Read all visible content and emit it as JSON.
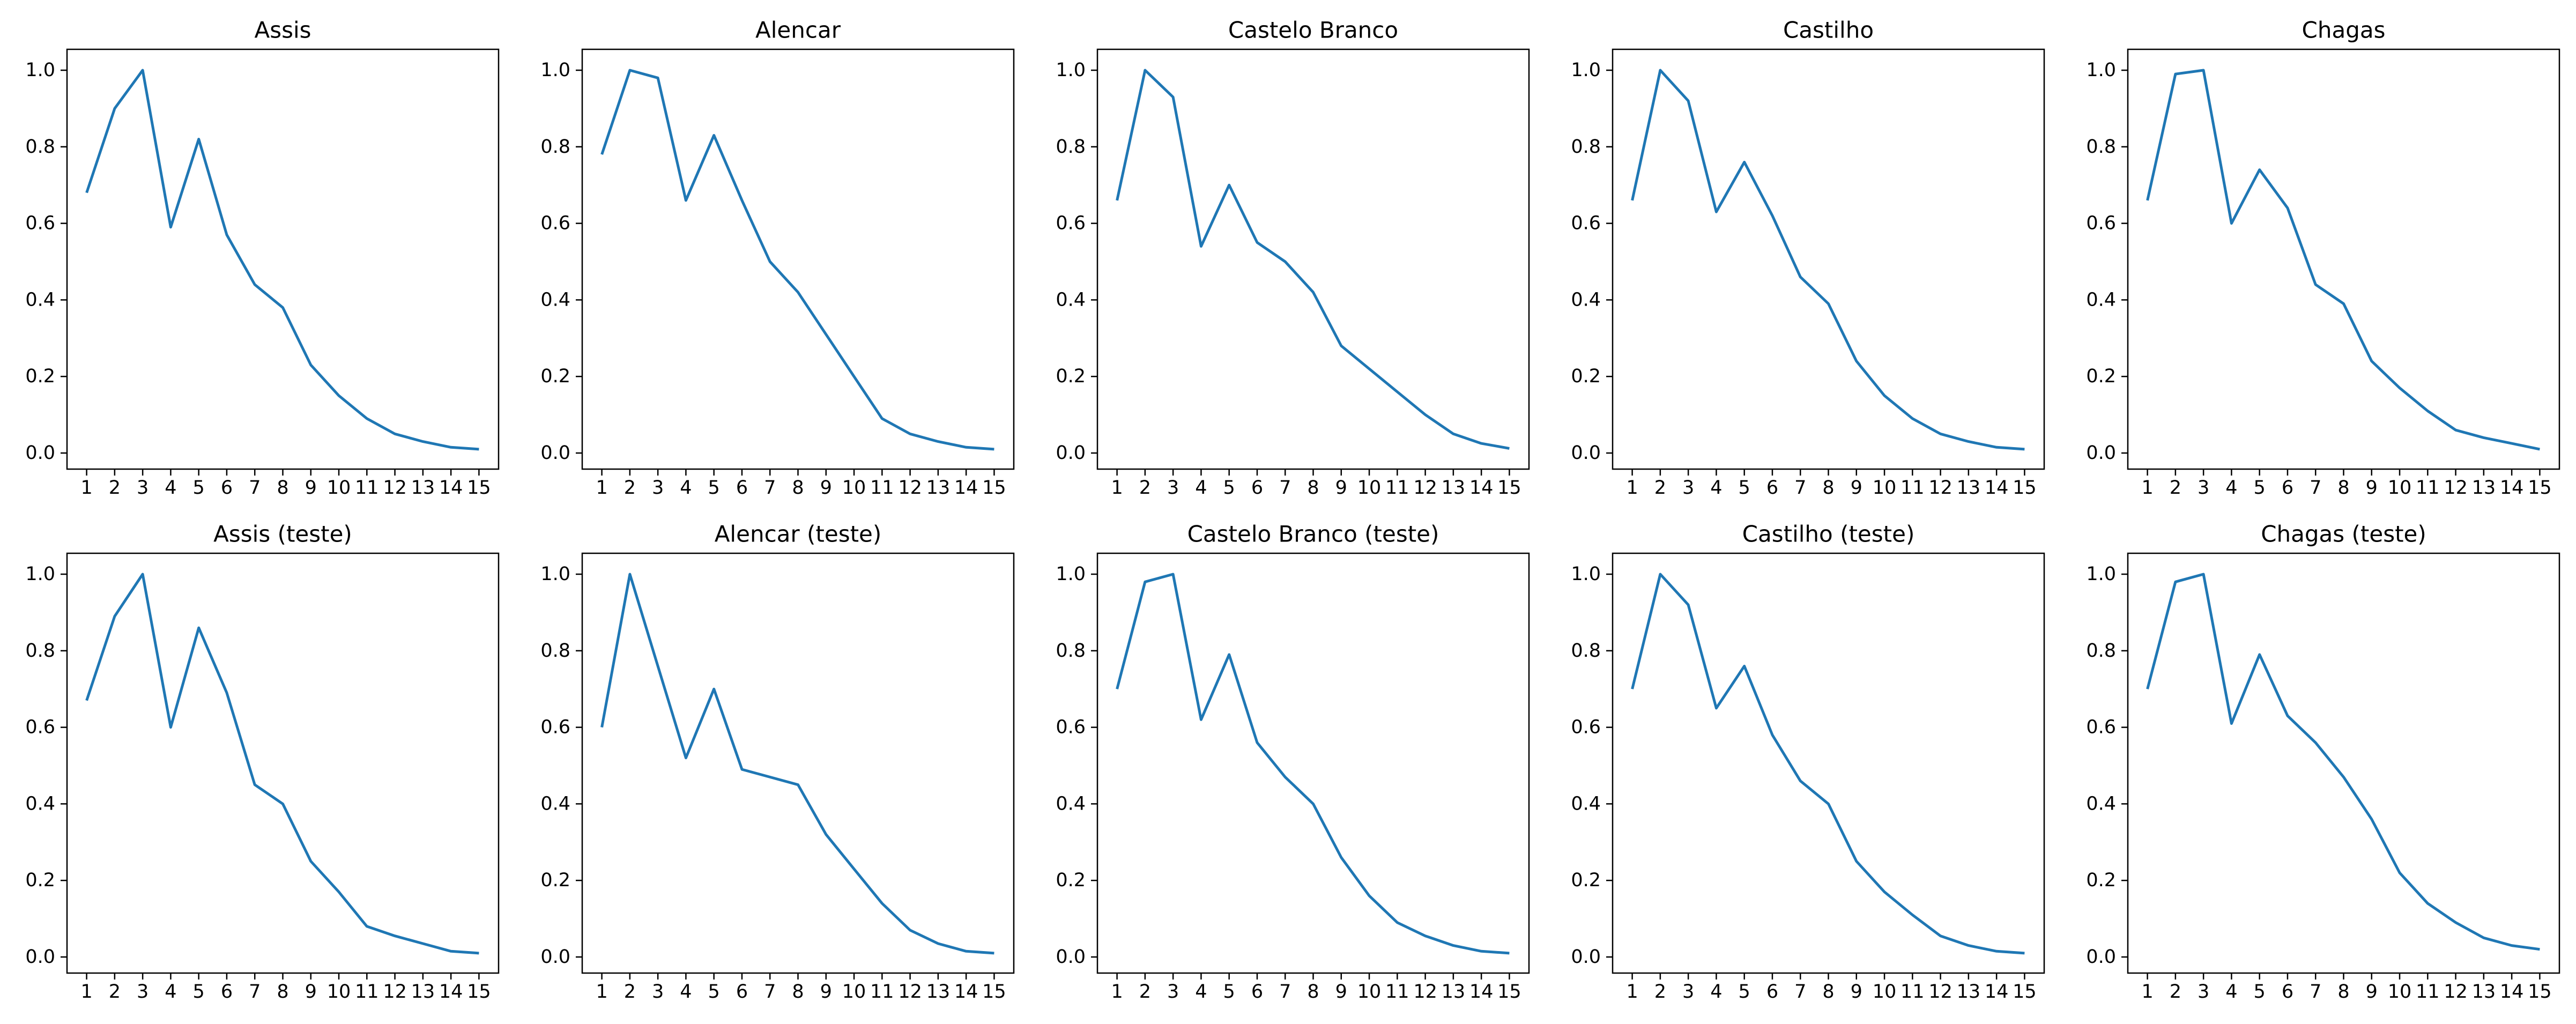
{
  "figure": {
    "background": "#ffffff",
    "line_color": "#1f77b4",
    "axis_color": "#000000",
    "text_color": "#000000",
    "rows": 2,
    "cols": 5,
    "grid": false,
    "legend": false
  },
  "axes": {
    "xlim": [
      0.3,
      15.7
    ],
    "ylim": [
      -0.045,
      1.05
    ],
    "xtick_labels": [
      "1",
      "2",
      "3",
      "4",
      "5",
      "6",
      "7",
      "8",
      "9",
      "10",
      "11",
      "12",
      "13",
      "14",
      "15"
    ],
    "ytick_values": [
      0.0,
      0.2,
      0.4,
      0.6,
      0.8,
      1.0
    ],
    "ytick_labels": [
      "0.0",
      "0.2",
      "0.4",
      "0.6",
      "0.8",
      "1.0"
    ],
    "xlabel": "",
    "ylabel": ""
  },
  "chart_data": [
    {
      "type": "line",
      "title": "Assis",
      "x": [
        1,
        2,
        3,
        4,
        5,
        6,
        7,
        8,
        9,
        10,
        11,
        12,
        13,
        14,
        15
      ],
      "y": [
        0.68,
        0.9,
        1.0,
        0.59,
        0.82,
        0.57,
        0.44,
        0.38,
        0.23,
        0.15,
        0.09,
        0.05,
        0.03,
        0.015,
        0.01
      ]
    },
    {
      "type": "line",
      "title": "Alencar",
      "x": [
        1,
        2,
        3,
        4,
        5,
        6,
        7,
        8,
        9,
        10,
        11,
        12,
        13,
        14,
        15
      ],
      "y": [
        0.78,
        1.0,
        0.98,
        0.66,
        0.83,
        0.66,
        0.5,
        0.42,
        0.31,
        0.2,
        0.09,
        0.05,
        0.03,
        0.015,
        0.01
      ]
    },
    {
      "type": "line",
      "title": "Castelo Branco",
      "x": [
        1,
        2,
        3,
        4,
        5,
        6,
        7,
        8,
        9,
        10,
        11,
        12,
        13,
        14,
        15
      ],
      "y": [
        0.66,
        1.0,
        0.93,
        0.54,
        0.7,
        0.55,
        0.5,
        0.42,
        0.28,
        0.22,
        0.16,
        0.1,
        0.05,
        0.025,
        0.012
      ]
    },
    {
      "type": "line",
      "title": "Castilho",
      "x": [
        1,
        2,
        3,
        4,
        5,
        6,
        7,
        8,
        9,
        10,
        11,
        12,
        13,
        14,
        15
      ],
      "y": [
        0.66,
        1.0,
        0.92,
        0.63,
        0.76,
        0.62,
        0.46,
        0.39,
        0.24,
        0.15,
        0.09,
        0.05,
        0.03,
        0.015,
        0.01
      ]
    },
    {
      "type": "line",
      "title": "Chagas",
      "x": [
        1,
        2,
        3,
        4,
        5,
        6,
        7,
        8,
        9,
        10,
        11,
        12,
        13,
        14,
        15
      ],
      "y": [
        0.66,
        0.99,
        1.0,
        0.6,
        0.74,
        0.64,
        0.44,
        0.39,
        0.24,
        0.17,
        0.11,
        0.06,
        0.04,
        0.025,
        0.01
      ]
    },
    {
      "type": "line",
      "title": "Assis (teste)",
      "x": [
        1,
        2,
        3,
        4,
        5,
        6,
        7,
        8,
        9,
        10,
        11,
        12,
        13,
        14,
        15
      ],
      "y": [
        0.67,
        0.89,
        1.0,
        0.6,
        0.86,
        0.69,
        0.45,
        0.4,
        0.25,
        0.17,
        0.08,
        0.055,
        0.035,
        0.015,
        0.01
      ]
    },
    {
      "type": "line",
      "title": "Alencar (teste)",
      "x": [
        1,
        2,
        3,
        4,
        5,
        6,
        7,
        8,
        9,
        10,
        11,
        12,
        13,
        14,
        15
      ],
      "y": [
        0.6,
        1.0,
        0.76,
        0.52,
        0.7,
        0.49,
        0.47,
        0.45,
        0.32,
        0.23,
        0.14,
        0.07,
        0.035,
        0.015,
        0.01
      ]
    },
    {
      "type": "line",
      "title": "Castelo Branco (teste)",
      "x": [
        1,
        2,
        3,
        4,
        5,
        6,
        7,
        8,
        9,
        10,
        11,
        12,
        13,
        14,
        15
      ],
      "y": [
        0.7,
        0.98,
        1.0,
        0.62,
        0.79,
        0.56,
        0.47,
        0.4,
        0.26,
        0.16,
        0.09,
        0.055,
        0.03,
        0.015,
        0.01
      ]
    },
    {
      "type": "line",
      "title": "Castilho (teste)",
      "x": [
        1,
        2,
        3,
        4,
        5,
        6,
        7,
        8,
        9,
        10,
        11,
        12,
        13,
        14,
        15
      ],
      "y": [
        0.7,
        1.0,
        0.92,
        0.65,
        0.76,
        0.58,
        0.46,
        0.4,
        0.25,
        0.17,
        0.11,
        0.055,
        0.03,
        0.015,
        0.01
      ]
    },
    {
      "type": "line",
      "title": "Chagas (teste)",
      "x": [
        1,
        2,
        3,
        4,
        5,
        6,
        7,
        8,
        9,
        10,
        11,
        12,
        13,
        14,
        15
      ],
      "y": [
        0.7,
        0.98,
        1.0,
        0.61,
        0.79,
        0.63,
        0.56,
        0.47,
        0.36,
        0.22,
        0.14,
        0.09,
        0.05,
        0.03,
        0.02
      ]
    }
  ]
}
